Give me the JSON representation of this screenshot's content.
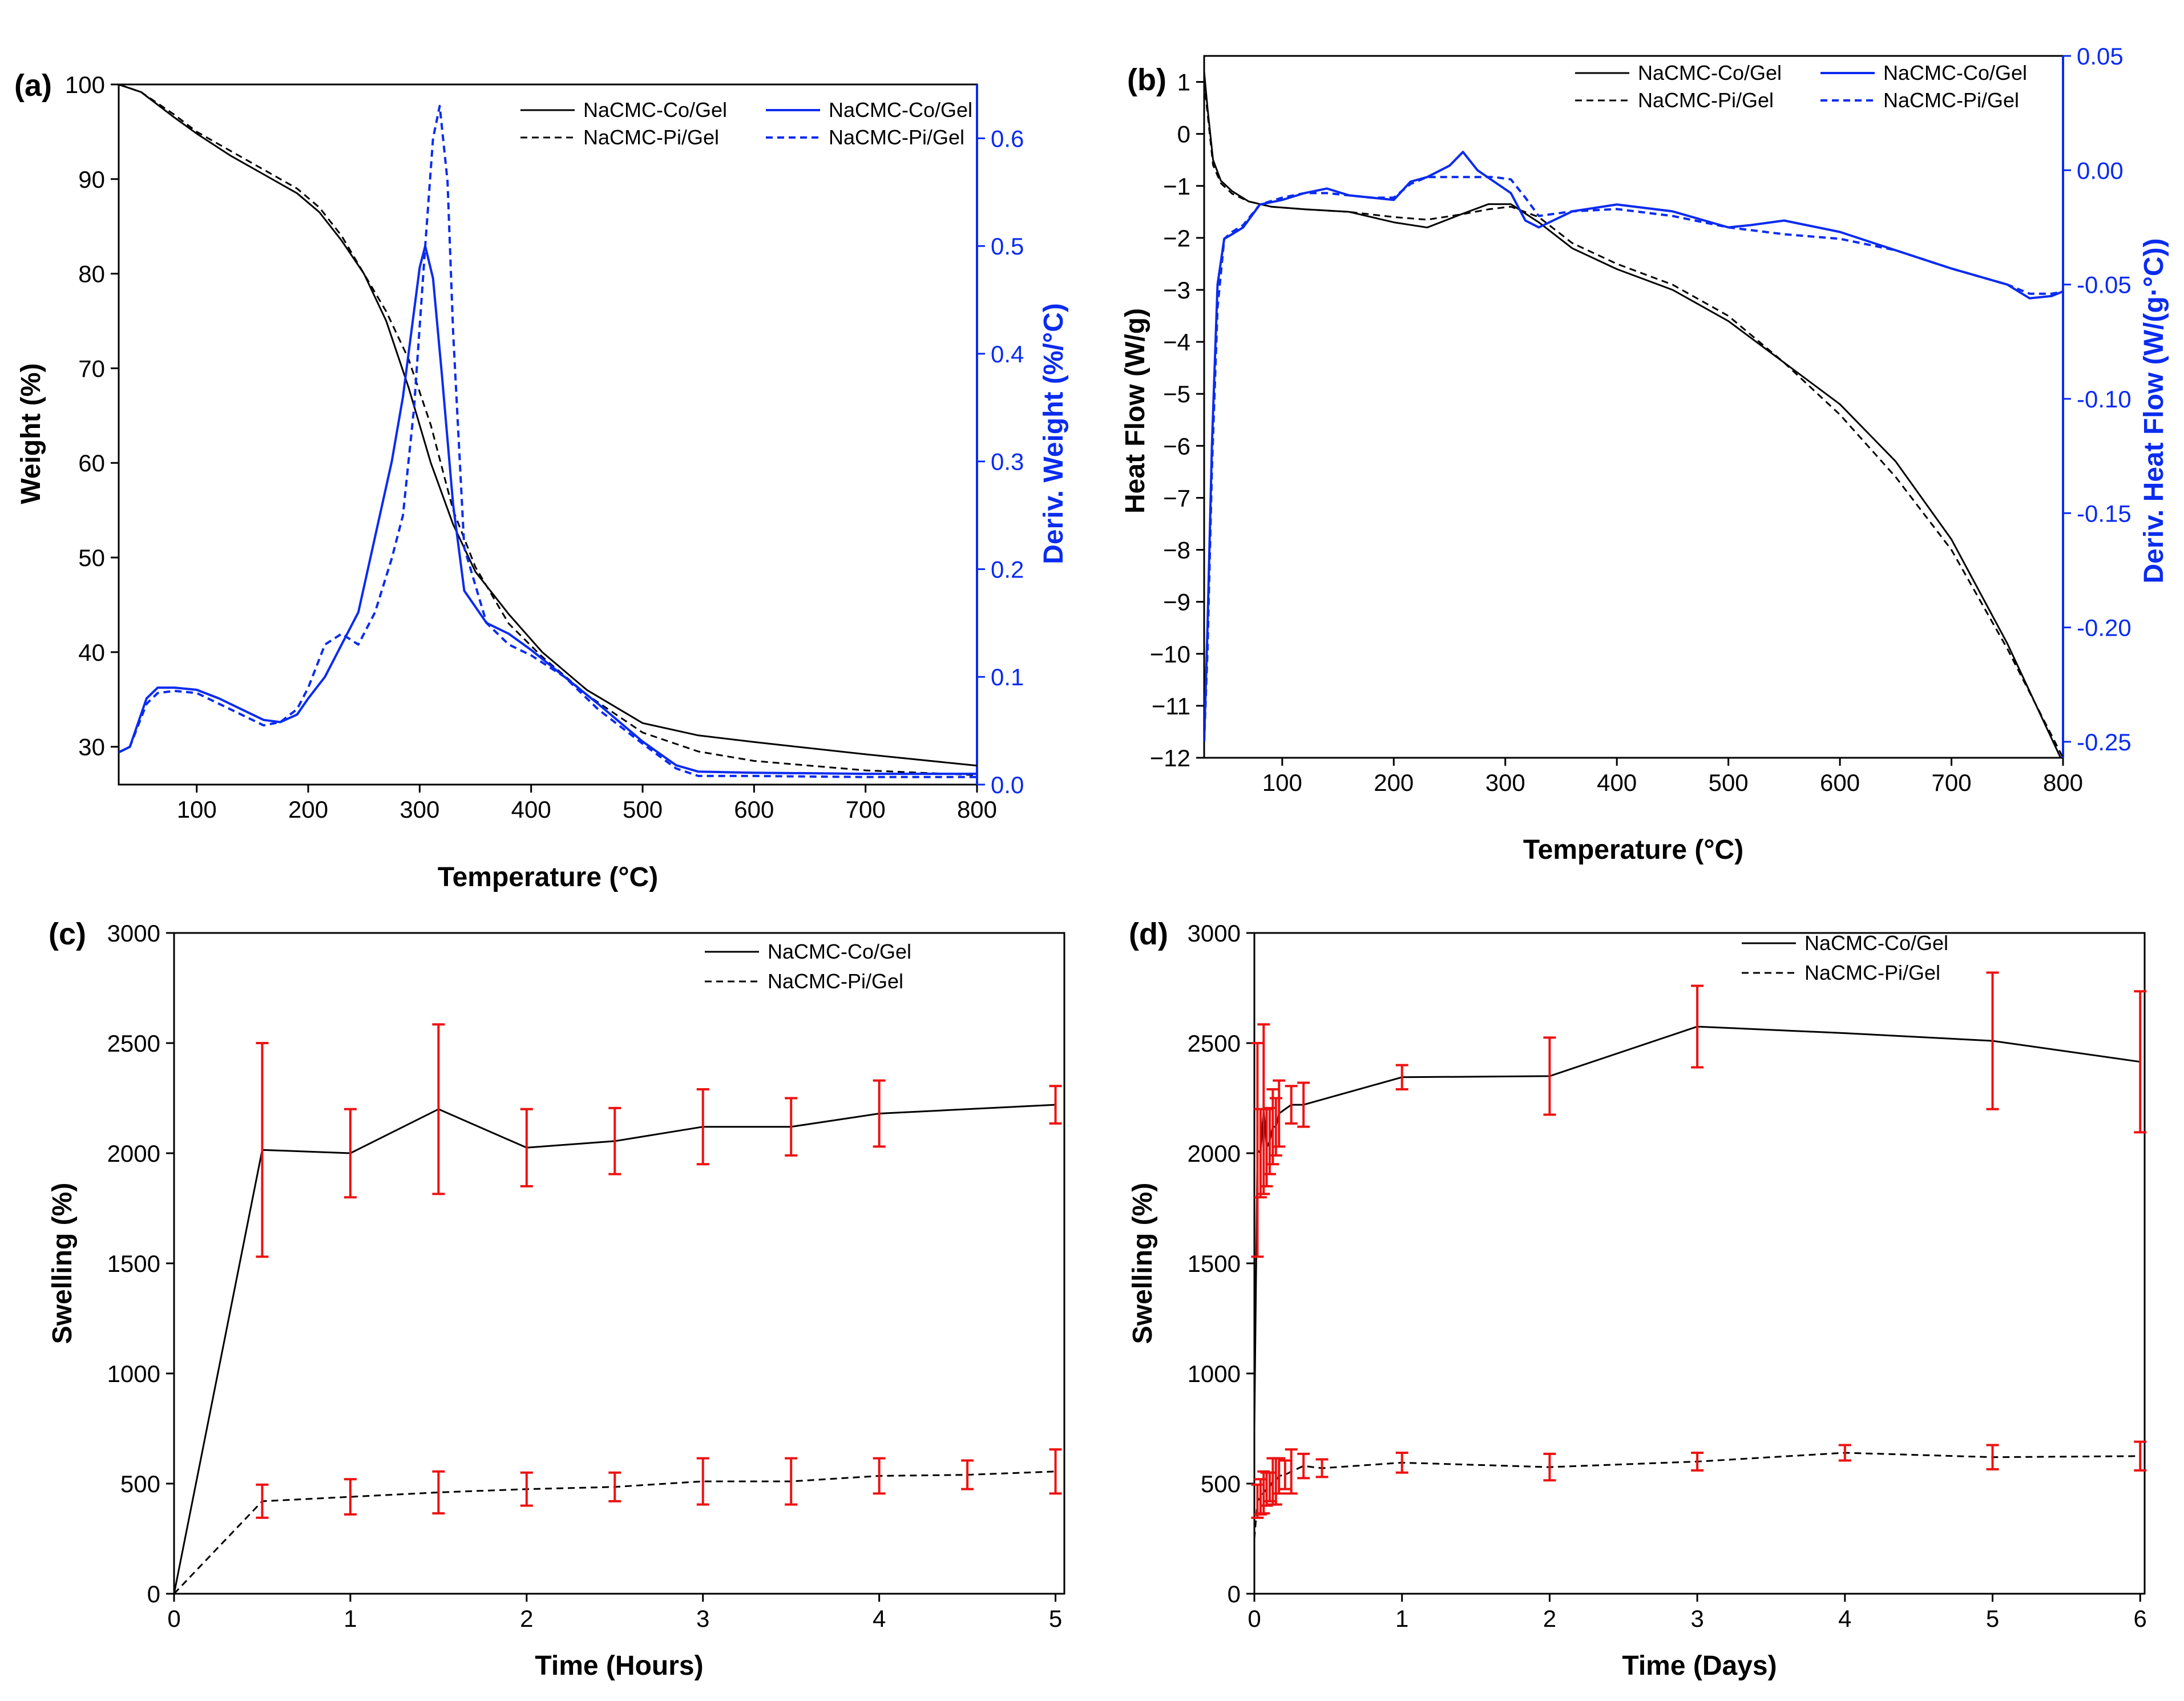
{
  "chart_data": [
    {
      "panel": "(a)",
      "type": "line",
      "xlabel": "Temperature (°C)",
      "ylabel": "Weight (%)",
      "ylabel_right": "Deriv. Weight (%/°C)",
      "xlim": [
        30,
        800
      ],
      "ylim": [
        26,
        100
      ],
      "ylim_right": [
        0,
        0.65
      ],
      "xticks": [
        100,
        200,
        300,
        400,
        500,
        600,
        700,
        800
      ],
      "yticks": [
        30,
        40,
        50,
        60,
        70,
        80,
        90,
        100
      ],
      "yticks_right": [
        0.0,
        0.1,
        0.2,
        0.3,
        0.4,
        0.5,
        0.6
      ],
      "ytick_labels_right": [
        "0.0",
        "0.1",
        "0.2",
        "0.3",
        "0.4",
        "0.5",
        "0.6"
      ],
      "legend": [
        "NaCMC-Co/Gel",
        "NaCMC-Pi/Gel",
        "NaCMC-Co/Gel",
        "NaCMC-Pi/Gel"
      ],
      "series": [
        {
          "name": "NaCMC-Co/Gel",
          "axis": "left",
          "style": "solid",
          "color": "#000000",
          "x": [
            30,
            50,
            80,
            100,
            130,
            160,
            190,
            210,
            230,
            250,
            270,
            290,
            310,
            330,
            350,
            380,
            410,
            450,
            500,
            550,
            600,
            700,
            800
          ],
          "y": [
            100,
            99.2,
            96.5,
            94.8,
            92.5,
            90.5,
            88.5,
            86.5,
            83.5,
            80.0,
            75.0,
            68.0,
            60.0,
            53.5,
            48.5,
            44.0,
            40.0,
            36.0,
            32.5,
            31.2,
            30.5,
            29.2,
            28.0
          ]
        },
        {
          "name": "NaCMC-Pi/Gel",
          "axis": "left",
          "style": "dashed",
          "color": "#000000",
          "x": [
            30,
            50,
            80,
            100,
            130,
            160,
            190,
            210,
            230,
            250,
            270,
            290,
            310,
            330,
            350,
            380,
            410,
            450,
            500,
            550,
            600,
            700,
            800
          ],
          "y": [
            100,
            99.2,
            96.8,
            95.0,
            93.0,
            91.0,
            89.0,
            87.0,
            84.0,
            80.0,
            76.0,
            71.0,
            64.0,
            55.0,
            49.0,
            43.0,
            39.5,
            35.5,
            31.5,
            29.5,
            28.5,
            27.5,
            27.0
          ]
        },
        {
          "name": "NaCMC-Co/Gel",
          "axis": "right",
          "style": "solid",
          "color": "#0a2bf0",
          "x": [
            30,
            40,
            55,
            65,
            80,
            100,
            120,
            140,
            160,
            175,
            190,
            200,
            215,
            230,
            245,
            260,
            275,
            285,
            295,
            300,
            305,
            312,
            320,
            330,
            340,
            360,
            380,
            400,
            430,
            460,
            500,
            530,
            550,
            600,
            700,
            800
          ],
          "y": [
            0.03,
            0.035,
            0.08,
            0.09,
            0.09,
            0.088,
            0.08,
            0.07,
            0.06,
            0.058,
            0.065,
            0.08,
            0.1,
            0.13,
            0.16,
            0.23,
            0.3,
            0.36,
            0.44,
            0.48,
            0.5,
            0.47,
            0.38,
            0.26,
            0.18,
            0.15,
            0.14,
            0.125,
            0.1,
            0.075,
            0.04,
            0.018,
            0.012,
            0.011,
            0.01,
            0.01
          ]
        },
        {
          "name": "NaCMC-Pi/Gel",
          "axis": "right",
          "style": "dashed",
          "color": "#0a2bf0",
          "x": [
            30,
            40,
            55,
            65,
            80,
            100,
            120,
            140,
            160,
            175,
            190,
            200,
            215,
            230,
            245,
            260,
            275,
            285,
            295,
            305,
            312,
            318,
            325,
            330,
            340,
            360,
            380,
            400,
            430,
            460,
            500,
            530,
            550,
            600,
            700,
            800
          ],
          "y": [
            0.03,
            0.035,
            0.075,
            0.085,
            0.087,
            0.085,
            0.075,
            0.065,
            0.055,
            0.058,
            0.07,
            0.09,
            0.13,
            0.14,
            0.13,
            0.16,
            0.21,
            0.25,
            0.35,
            0.5,
            0.6,
            0.63,
            0.56,
            0.42,
            0.22,
            0.15,
            0.13,
            0.12,
            0.1,
            0.07,
            0.038,
            0.015,
            0.008,
            0.008,
            0.007,
            0.007
          ]
        }
      ]
    },
    {
      "panel": "(b)",
      "type": "line",
      "xlabel": "Temperature (°C)",
      "ylabel": "Heat Flow (W/g)",
      "ylabel_right": "Deriv. Heat Flow (W/(g·°C))",
      "xlim": [
        30,
        800
      ],
      "ylim": [
        -12,
        1.5
      ],
      "ylim_right": [
        -0.257,
        0.05
      ],
      "xticks": [
        100,
        200,
        300,
        400,
        500,
        600,
        700,
        800
      ],
      "yticks": [
        -12,
        -11,
        -10,
        -9,
        -8,
        -7,
        -6,
        -5,
        -4,
        -3,
        -2,
        -1,
        0,
        1
      ],
      "yticks_right": [
        -0.25,
        -0.2,
        -0.15,
        -0.1,
        -0.05,
        0.0,
        0.05
      ],
      "ytick_labels_right": [
        "-0.25",
        "-0.20",
        "-0.15",
        "-0.10",
        "-0.05",
        "0.00",
        "0.05"
      ],
      "legend": [
        "NaCMC-Co/Gel",
        "NaCMC-Pi/Gel",
        "NaCMC-Co/Gel",
        "NaCMC-Pi/Gel"
      ],
      "series": [
        {
          "name": "NaCMC-Co/Gel",
          "axis": "left",
          "style": "solid",
          "color": "#000000",
          "x": [
            30,
            33,
            38,
            45,
            55,
            70,
            90,
            120,
            160,
            200,
            230,
            260,
            285,
            305,
            330,
            360,
            400,
            450,
            500,
            550,
            600,
            650,
            700,
            750,
            800
          ],
          "y": [
            1.2,
            0.5,
            -0.5,
            -0.9,
            -1.1,
            -1.3,
            -1.4,
            -1.45,
            -1.5,
            -1.7,
            -1.8,
            -1.55,
            -1.35,
            -1.35,
            -1.7,
            -2.2,
            -2.6,
            -3.0,
            -3.6,
            -4.4,
            -5.2,
            -6.3,
            -7.8,
            -9.8,
            -12.1
          ]
        },
        {
          "name": "NaCMC-Pi/Gel",
          "axis": "left",
          "style": "dashed",
          "color": "#000000",
          "x": [
            30,
            33,
            38,
            45,
            55,
            70,
            90,
            120,
            160,
            200,
            230,
            260,
            285,
            305,
            330,
            360,
            400,
            450,
            500,
            550,
            600,
            650,
            700,
            750,
            800
          ],
          "y": [
            1.0,
            0.4,
            -0.6,
            -0.95,
            -1.15,
            -1.3,
            -1.4,
            -1.45,
            -1.5,
            -1.6,
            -1.65,
            -1.55,
            -1.45,
            -1.4,
            -1.6,
            -2.1,
            -2.5,
            -2.9,
            -3.5,
            -4.4,
            -5.4,
            -6.6,
            -8.0,
            -9.9,
            -12.0
          ]
        },
        {
          "name": "NaCMC-Co/Gel",
          "axis": "right",
          "style": "solid",
          "color": "#0a2bf0",
          "x": [
            30,
            33,
            37,
            42,
            48,
            55,
            65,
            80,
            100,
            120,
            140,
            160,
            180,
            200,
            215,
            230,
            250,
            262,
            275,
            290,
            305,
            318,
            330,
            360,
            400,
            450,
            500,
            520,
            550,
            600,
            650,
            700,
            750,
            770,
            790,
            800
          ],
          "y": [
            -0.25,
            -0.2,
            -0.12,
            -0.05,
            -0.03,
            -0.028,
            -0.025,
            -0.015,
            -0.013,
            -0.01,
            -0.008,
            -0.011,
            -0.012,
            -0.013,
            -0.005,
            -0.003,
            0.002,
            0.008,
            0.0,
            -0.005,
            -0.01,
            -0.022,
            -0.025,
            -0.018,
            -0.015,
            -0.018,
            -0.025,
            -0.024,
            -0.022,
            -0.027,
            -0.035,
            -0.043,
            -0.05,
            -0.056,
            -0.055,
            -0.053
          ]
        },
        {
          "name": "NaCMC-Pi/Gel",
          "axis": "right",
          "style": "dashed",
          "color": "#0a2bf0",
          "x": [
            30,
            33,
            37,
            42,
            48,
            55,
            65,
            80,
            100,
            120,
            140,
            160,
            180,
            200,
            215,
            230,
            250,
            270,
            290,
            305,
            318,
            330,
            360,
            400,
            450,
            500,
            550,
            600,
            650,
            700,
            750,
            770,
            790,
            800
          ],
          "y": [
            -0.25,
            -0.21,
            -0.13,
            -0.06,
            -0.03,
            -0.027,
            -0.024,
            -0.015,
            -0.012,
            -0.01,
            -0.01,
            -0.011,
            -0.012,
            -0.012,
            -0.006,
            -0.003,
            -0.003,
            -0.003,
            -0.003,
            -0.004,
            -0.012,
            -0.02,
            -0.018,
            -0.017,
            -0.02,
            -0.025,
            -0.028,
            -0.03,
            -0.035,
            -0.043,
            -0.05,
            -0.054,
            -0.054,
            -0.053
          ]
        }
      ]
    },
    {
      "panel": "(c)",
      "type": "line",
      "xlabel": "Time (Hours)",
      "ylabel": "Swelling (%)",
      "xlim": [
        0,
        5.05
      ],
      "ylim": [
        0,
        3000
      ],
      "xticks": [
        0,
        1,
        2,
        3,
        4,
        5
      ],
      "yticks": [
        0,
        500,
        1000,
        1500,
        2000,
        2500,
        3000
      ],
      "legend": [
        "NaCMC-Co/Gel",
        "NaCMC-Pi/Gel"
      ],
      "errorbar_color": "#ee1111",
      "series": [
        {
          "name": "NaCMC-Co/Gel",
          "style": "solid",
          "color": "#000000",
          "x": [
            0,
            0.5,
            1,
            1.5,
            2,
            2.5,
            3,
            3.5,
            4,
            4.5,
            5
          ],
          "y": [
            0,
            2015,
            2000,
            2200,
            2025,
            2055,
            2120,
            2120,
            2180,
            2200,
            2220
          ],
          "err": [
            0,
            485,
            200,
            385,
            175,
            150,
            170,
            130,
            150,
            0,
            85
          ]
        },
        {
          "name": "NaCMC-Pi/Gel",
          "style": "dashed",
          "color": "#000000",
          "x": [
            0,
            0.5,
            1,
            1.5,
            2,
            2.5,
            3,
            3.5,
            4,
            4.5,
            5
          ],
          "y": [
            0,
            420,
            440,
            460,
            475,
            485,
            510,
            510,
            535,
            540,
            555
          ],
          "err": [
            0,
            75,
            80,
            95,
            75,
            65,
            105,
            105,
            80,
            65,
            100
          ]
        }
      ]
    },
    {
      "panel": "(d)",
      "type": "line",
      "xlabel": "Time (Days)",
      "ylabel": "Swelling (%)",
      "xlim": [
        0,
        6.03
      ],
      "ylim": [
        0,
        3000
      ],
      "xticks": [
        0,
        1,
        2,
        3,
        4,
        5,
        6
      ],
      "yticks": [
        0,
        500,
        1000,
        1500,
        2000,
        2500,
        3000
      ],
      "legend": [
        "NaCMC-Co/Gel",
        "NaCMC-Pi/Gel"
      ],
      "errorbar_color": "#ee1111",
      "series": [
        {
          "name": "NaCMC-Co/Gel",
          "style": "solid",
          "color": "#000000",
          "x": [
            0,
            0.021,
            0.042,
            0.063,
            0.083,
            0.104,
            0.125,
            0.146,
            0.167,
            0.208,
            0.25,
            0.333,
            1,
            2,
            3,
            4,
            5,
            6
          ],
          "y": [
            750,
            2015,
            2000,
            2200,
            2025,
            2055,
            2120,
            2120,
            2180,
            2200,
            2220,
            2220,
            2345,
            2350,
            2575,
            2545,
            2510,
            2415
          ],
          "err": [
            0,
            485,
            200,
            385,
            175,
            150,
            170,
            130,
            150,
            0,
            85,
            100,
            55,
            175,
            185,
            0,
            310,
            320
          ]
        },
        {
          "name": "NaCMC-Pi/Gel",
          "style": "dashed",
          "color": "#000000",
          "x": [
            0,
            0.021,
            0.042,
            0.063,
            0.083,
            0.104,
            0.125,
            0.146,
            0.167,
            0.208,
            0.25,
            0.333,
            0.458,
            1,
            2,
            3,
            4,
            5,
            6
          ],
          "y": [
            250,
            420,
            440,
            460,
            475,
            485,
            510,
            510,
            535,
            540,
            555,
            580,
            570,
            595,
            575,
            600,
            640,
            620,
            625
          ],
          "err": [
            0,
            75,
            80,
            95,
            75,
            65,
            105,
            105,
            80,
            65,
            100,
            55,
            40,
            45,
            60,
            40,
            35,
            55,
            65
          ]
        }
      ]
    }
  ]
}
